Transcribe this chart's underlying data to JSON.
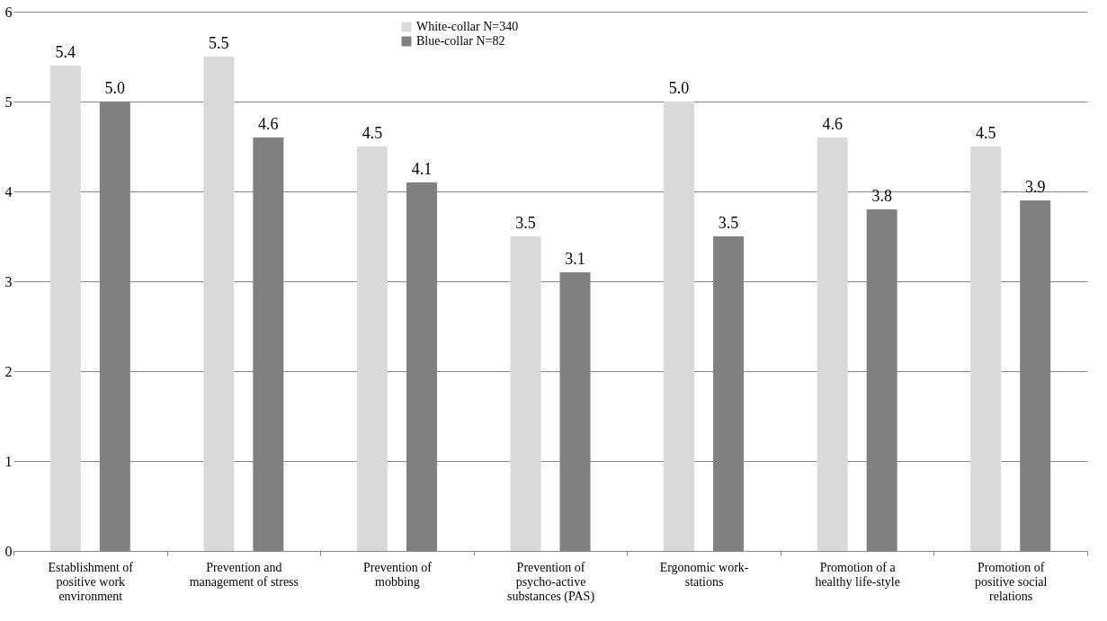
{
  "chart_data": {
    "type": "bar",
    "categories": [
      "Establishment of positive work environment",
      "Prevention and management of stress",
      "Prevention of mobbing",
      "Prevention of psycho-active substances (PAS)",
      "Ergonomic work-stations",
      "Promotion of a healthy life-style",
      "Promotion of positive social relations"
    ],
    "series": [
      {
        "name": "White-collar N=340",
        "color": "#d9d9d9",
        "values": [
          5.4,
          5.5,
          4.5,
          3.5,
          5.0,
          4.6,
          4.5
        ],
        "value_labels": [
          "5.4",
          "5.5",
          "4.5",
          "3.5",
          "5.0",
          "4.6",
          "4.5"
        ]
      },
      {
        "name": "Blue-collar N=82",
        "color": "#808080",
        "values": [
          5.0,
          4.6,
          4.1,
          3.1,
          3.5,
          3.8,
          3.9
        ],
        "value_labels": [
          "5.0",
          "4.6",
          "4.1",
          "3.1",
          "3.5",
          "3.8",
          "3.9"
        ]
      }
    ],
    "ylim": [
      0,
      6
    ],
    "yticks": [
      0,
      1,
      2,
      3,
      4,
      5,
      6
    ],
    "grid": "y",
    "legend": "top"
  }
}
